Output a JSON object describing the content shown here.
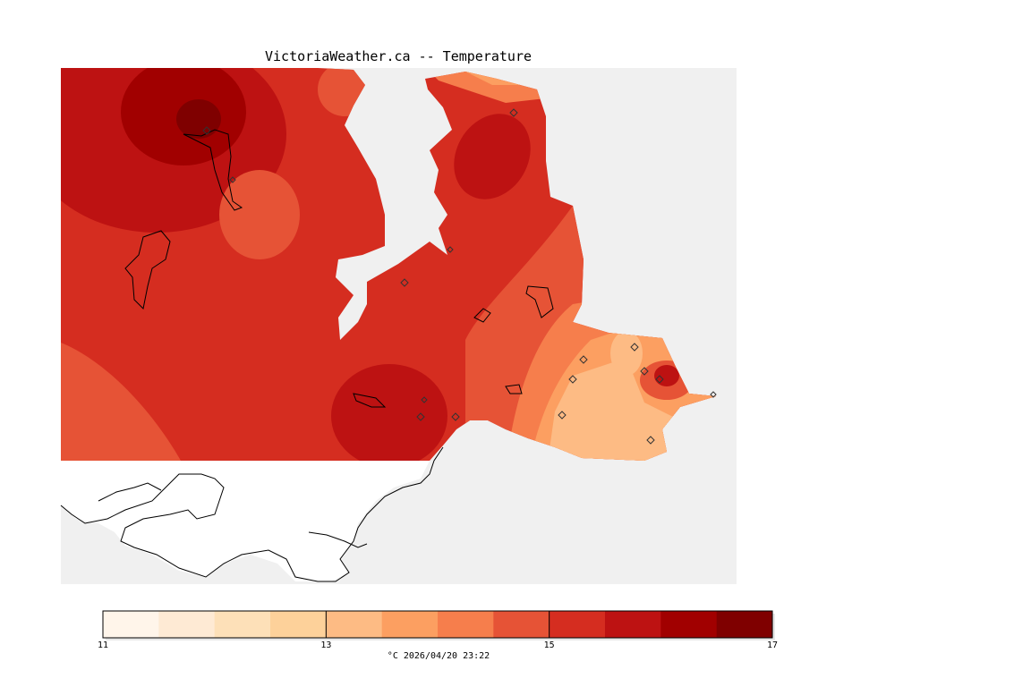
{
  "title": "VictoriaWeather.ca -- Temperature",
  "colorbar": {
    "unit": "°C",
    "timestamp": "2026/04/20 23:22",
    "caption": "°C  2026/04/20 23:22",
    "min": 11,
    "max": 17,
    "step": 0.5,
    "tick_labels": [
      "11",
      "13",
      "15",
      "17"
    ],
    "colors": [
      "#fff5ea",
      "#feead4",
      "#fde0b8",
      "#fdd19a",
      "#fdbb84",
      "#fc9f61",
      "#f67e4c",
      "#e65336",
      "#d52d20",
      "#bd1212",
      "#a10000",
      "#7f0000"
    ]
  },
  "colors": {
    "land_bg": "#f0f0f0",
    "water": "#ffffff",
    "coast": "#000000"
  }
}
